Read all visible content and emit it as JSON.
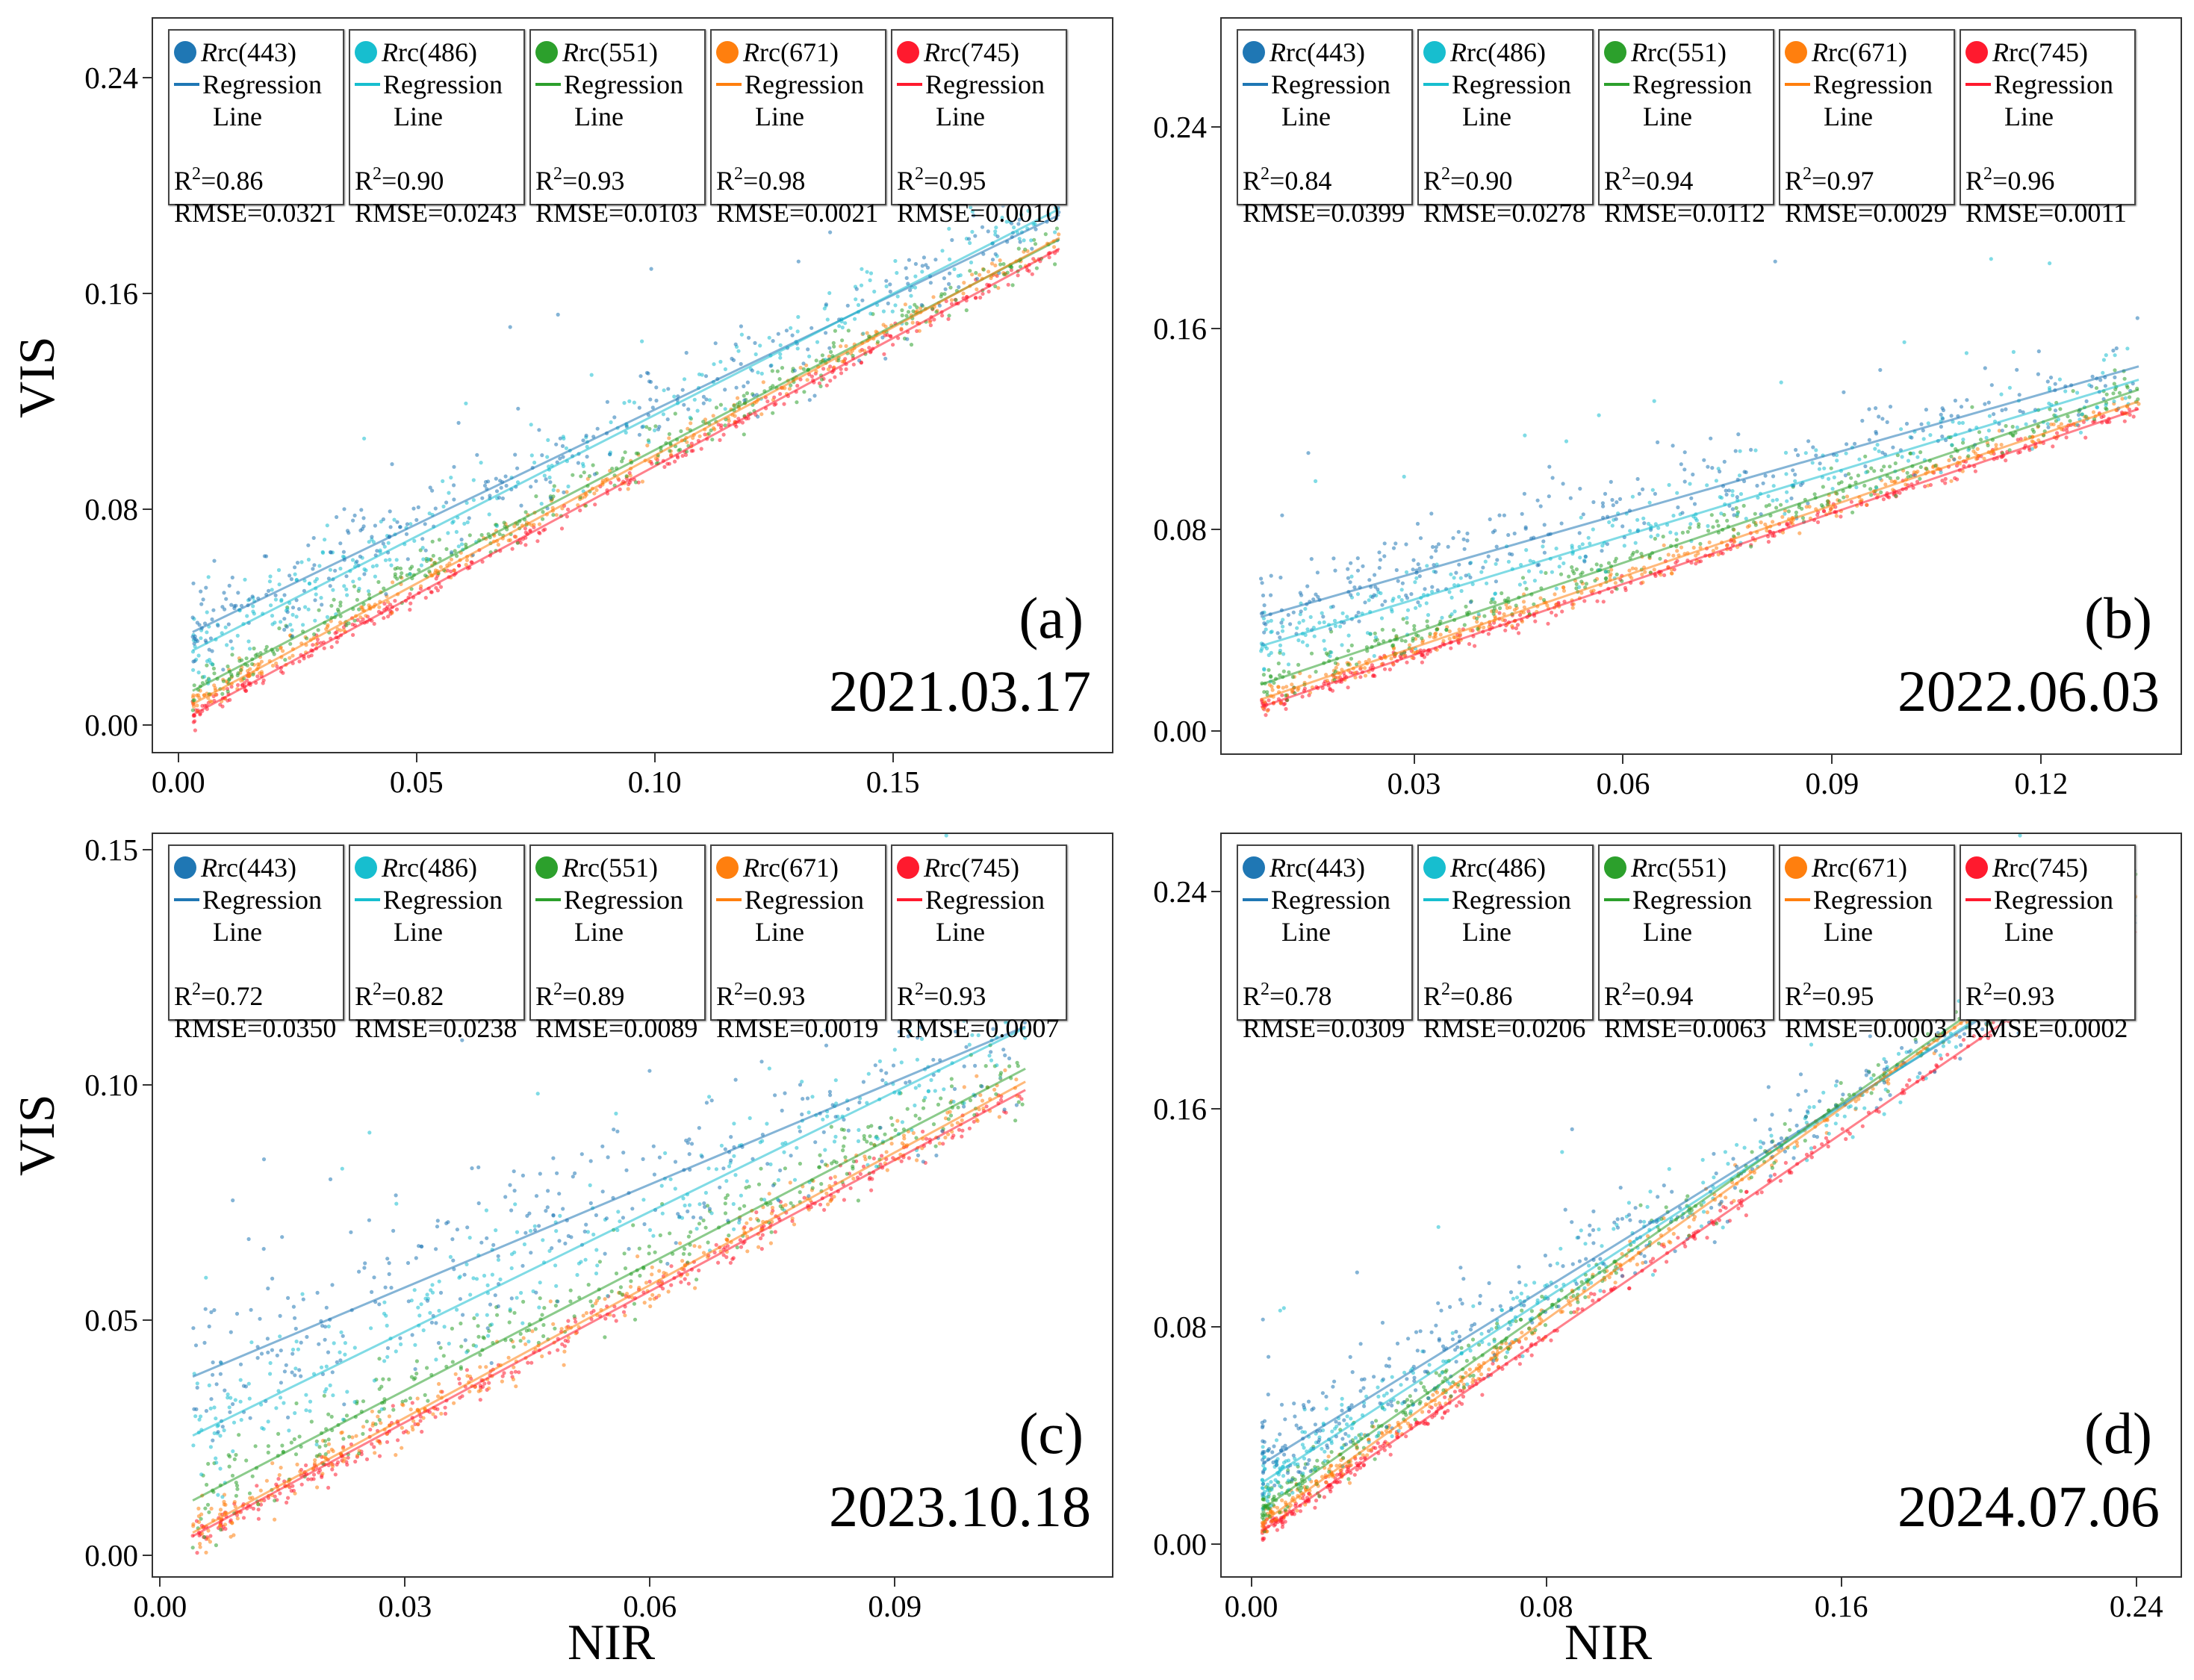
{
  "axis_titles": {
    "y": "VIS",
    "x": "NIR"
  },
  "colors": {
    "Rrc(443)": "#1f77b4",
    "Rrc(486)": "#17becf",
    "Rrc(551)": "#2ca02c",
    "Rrc(671)": "#ff7f0e",
    "Rrc(745)": "#ff1a2e"
  },
  "chart_data": [
    {
      "type": "scatter",
      "panel": "(a)",
      "date": "2021.03.17",
      "xlabel": "",
      "ylabel": "VIS",
      "xlim": [
        -0.0053,
        0.196
      ],
      "ylim": [
        -0.0099,
        0.262
      ],
      "xticks": [
        "0.00",
        "0.05",
        "0.10",
        "0.15"
      ],
      "yticks": [
        "0.00",
        "0.08",
        "0.16",
        "0.24"
      ],
      "x_data_range": [
        0.003,
        0.185
      ],
      "series": [
        {
          "name": "Rrc(443)",
          "line_label": "Regression Line",
          "r2": "0.86",
          "rmse": "0.0321",
          "intercept": 0.032,
          "slope": 0.85
        },
        {
          "name": "Rrc(486)",
          "line_label": "Regression Line",
          "r2": "0.90",
          "rmse": "0.0243",
          "intercept": 0.025,
          "slope": 0.9
        },
        {
          "name": "Rrc(551)",
          "line_label": "Regression Line",
          "r2": "0.93",
          "rmse": "0.0103",
          "intercept": 0.01,
          "slope": 0.92
        },
        {
          "name": "Rrc(671)",
          "line_label": "Regression Line",
          "r2": "0.98",
          "rmse": "0.0021",
          "intercept": 0.005,
          "slope": 0.95
        },
        {
          "name": "Rrc(745)",
          "line_label": "Regression Line",
          "r2": "0.95",
          "rmse": "0.0010",
          "intercept": 0.001,
          "slope": 0.95
        }
      ]
    },
    {
      "type": "scatter",
      "panel": "(b)",
      "date": "2022.06.03",
      "xlabel": "",
      "ylabel": "",
      "xlim": [
        0.0024,
        0.14
      ],
      "ylim": [
        -0.0089,
        0.283
      ],
      "xticks": [
        "0.03",
        "0.06",
        "0.09",
        "0.12"
      ],
      "yticks": [
        "0.00",
        "0.08",
        "0.16",
        "0.24"
      ],
      "x_data_range": [
        0.008,
        0.134
      ],
      "series": [
        {
          "name": "Rrc(443)",
          "line_label": "Regression Line",
          "r2": "0.84",
          "rmse": "0.0399",
          "intercept": 0.039,
          "slope": 0.79
        },
        {
          "name": "Rrc(486)",
          "line_label": "Regression Line",
          "r2": "0.90",
          "rmse": "0.0278",
          "intercept": 0.027,
          "slope": 0.84
        },
        {
          "name": "Rrc(551)",
          "line_label": "Regression Line",
          "r2": "0.94",
          "rmse": "0.0112",
          "intercept": 0.011,
          "slope": 0.93
        },
        {
          "name": "Rrc(671)",
          "line_label": "Regression Line",
          "r2": "0.97",
          "rmse": "0.0029",
          "intercept": 0.005,
          "slope": 0.94
        },
        {
          "name": "Rrc(745)",
          "line_label": "Regression Line",
          "r2": "0.96",
          "rmse": "0.0011",
          "intercept": 0.002,
          "slope": 0.94
        }
      ]
    },
    {
      "type": "scatter",
      "panel": "(c)",
      "date": "2023.10.18",
      "xlabel": "NIR",
      "ylabel": "VIS",
      "xlim": [
        -0.00086,
        0.1166
      ],
      "ylim": [
        -0.0045,
        0.1533
      ],
      "xticks": [
        "0.00",
        "0.03",
        "0.06",
        "0.09"
      ],
      "yticks": [
        "0.00",
        "0.05",
        "0.10",
        "0.15"
      ],
      "x_data_range": [
        0.004,
        0.106
      ],
      "series": [
        {
          "name": "Rrc(443)",
          "line_label": "Regression Line",
          "r2": "0.72",
          "rmse": "0.0350",
          "intercept": 0.035,
          "slope": 0.73
        },
        {
          "name": "Rrc(486)",
          "line_label": "Regression Line",
          "r2": "0.82",
          "rmse": "0.0238",
          "intercept": 0.022,
          "slope": 0.85
        },
        {
          "name": "Rrc(551)",
          "line_label": "Regression Line",
          "r2": "0.89",
          "rmse": "0.0089",
          "intercept": 0.008,
          "slope": 0.9
        },
        {
          "name": "Rrc(671)",
          "line_label": "Regression Line",
          "r2": "0.93",
          "rmse": "0.0019",
          "intercept": 0.001,
          "slope": 0.94
        },
        {
          "name": "Rrc(745)",
          "line_label": "Regression Line",
          "r2": "0.93",
          "rmse": "0.0007",
          "intercept": 0.0003,
          "slope": 0.93
        }
      ]
    },
    {
      "type": "scatter",
      "panel": "(d)",
      "date": "2024.07.06",
      "xlabel": "NIR",
      "ylabel": "",
      "xlim": [
        -0.008,
        0.252
      ],
      "ylim": [
        -0.0118,
        0.261
      ],
      "xticks": [
        "0.00",
        "0.08",
        "0.16",
        "0.24"
      ],
      "yticks": [
        "0.00",
        "0.08",
        "0.16",
        "0.24"
      ],
      "x_data_range": [
        0.003,
        0.24
      ],
      "series": [
        {
          "name": "Rrc(443)",
          "line_label": "Regression Line",
          "r2": "0.78",
          "rmse": "0.0309",
          "intercept": 0.027,
          "slope": 0.84
        },
        {
          "name": "Rrc(486)",
          "line_label": "Regression Line",
          "r2": "0.86",
          "rmse": "0.0206",
          "intercept": 0.02,
          "slope": 0.88
        },
        {
          "name": "Rrc(551)",
          "line_label": "Regression Line",
          "r2": "0.94",
          "rmse": "0.0063",
          "intercept": 0.01,
          "slope": 0.95
        },
        {
          "name": "Rrc(671)",
          "line_label": "Regression Line",
          "r2": "0.95",
          "rmse": "0.0003",
          "intercept": 0.005,
          "slope": 0.97
        },
        {
          "name": "Rrc(745)",
          "line_label": "Regression Line",
          "r2": "0.93",
          "rmse": "0.0002",
          "intercept": 0.002,
          "slope": 0.93
        }
      ]
    }
  ]
}
